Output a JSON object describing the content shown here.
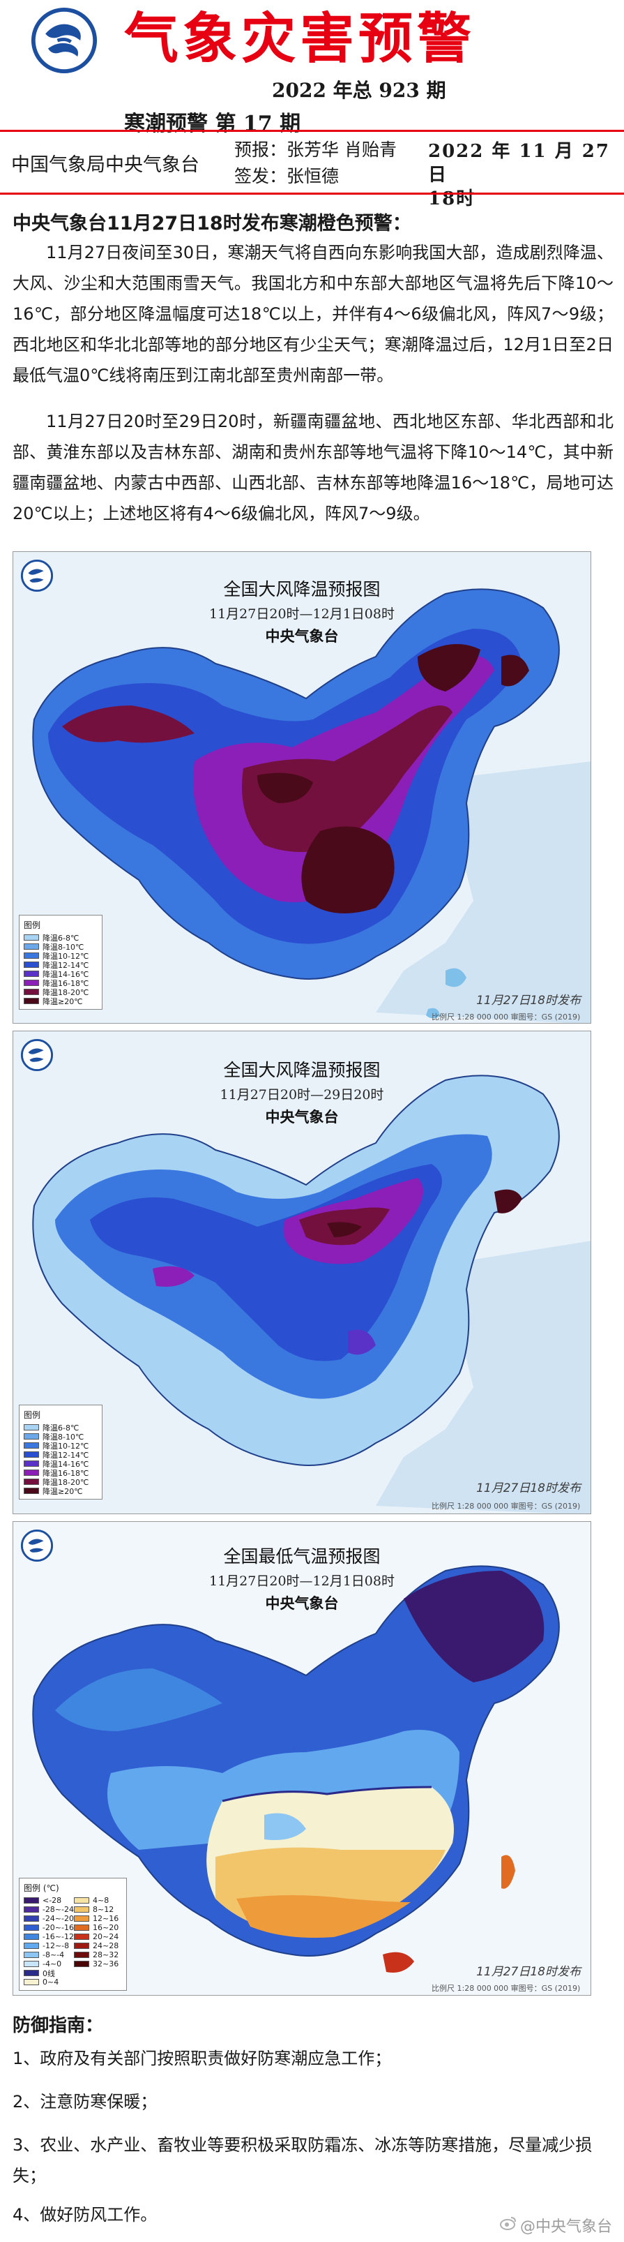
{
  "header": {
    "title": "气象灾害预警",
    "issue": "2022 年总 923 期",
    "subtitle": "寒潮预警 第 17 期",
    "org": "中国气象局中央气象台",
    "forecasters_label": "预报：",
    "forecasters": "张芳华 肖贻青",
    "issuer_label": "签发：",
    "issuer": "张恒德",
    "date_line1": "2022 年 11 月 27 日",
    "date_line2": "18时",
    "colors": {
      "title_red": "#e60012",
      "logo_blue": "#1c4fa0"
    }
  },
  "body": {
    "headline": "中央气象台11月27日18时发布寒潮橙色预警：",
    "para1": "11月27日夜间至30日，寒潮天气将自西向东影响我国大部，造成剧烈降温、大风、沙尘和大范围雨雪天气。我国北方和中东部大部地区气温将先后下降10～16℃，部分地区降温幅度可达18℃以上，并伴有4～6级偏北风，阵风7～9级；西北地区和华北北部等地的部分地区有少尘天气；寒潮降温过后，12月1日至2日最低气温0℃线将南压到江南北部至贵州南部一带。",
    "para2": "11月27日20时至29日20时，新疆南疆盆地、西北地区东部、华北西部和北部、黄淮东部以及吉林东部、湖南和贵州东部等地气温将下降10～14℃，其中新疆南疆盆地、内蒙古中西部、山西北部、吉林东部等地降温16～18℃，局地可达20℃以上；上述地区将有4～6级偏北风，阵风7～9级。"
  },
  "maps": [
    {
      "title": "全国大风降温预报图",
      "period": "11月27日20时—12月1日08时",
      "issuer": "中央气象台",
      "publish": "11月27日18时发布",
      "legend_title": "图例",
      "legend": [
        "降温6-8℃",
        "降温8-10℃",
        "降温10-12℃",
        "降温12-14℃",
        "降温14-16℃",
        "降温16-18℃",
        "降温18-20℃",
        "降温≥20℃"
      ],
      "legend_colors": [
        "#a9d3f2",
        "#6aa8ea",
        "#3a78e0",
        "#2a4fd0",
        "#5a32c8",
        "#8c1fb8",
        "#74103e",
        "#4a0a1a"
      ],
      "scale": "比例尺 1:28 000 000    审图号：GS (2019) 3082号"
    },
    {
      "title": "全国大风降温预报图",
      "period": "11月27日20时—29日20时",
      "issuer": "中央气象台",
      "publish": "11月27日18时发布",
      "legend_title": "图例",
      "legend": [
        "降温6-8℃",
        "降温8-10℃",
        "降温10-12℃",
        "降温12-14℃",
        "降温14-16℃",
        "降温16-18℃",
        "降温18-20℃",
        "降温≥20℃"
      ],
      "legend_colors": [
        "#a9d3f2",
        "#6aa8ea",
        "#3a78e0",
        "#2a4fd0",
        "#5a32c8",
        "#8c1fb8",
        "#74103e",
        "#4a0a1a"
      ],
      "scale": "比例尺 1:28 000 000    审图号：GS (2019) 3082号"
    },
    {
      "title": "全国最低气温预报图",
      "period": "11月27日20时—12月1日08时",
      "issuer": "中央气象台",
      "publish": "11月27日18时发布",
      "legend_title": "图例 (℃)",
      "legend_left": [
        "<-28",
        "-28~-24",
        "-24~-20",
        "-20~-16",
        "-16~-12",
        "-12~-8",
        "-8~-4",
        "-4~0",
        "0线",
        "0~4"
      ],
      "legend_right": [
        "4~8",
        "8~12",
        "12~16",
        "16~20",
        "20~24",
        "24~28",
        "28~32",
        "32~36"
      ],
      "legend_left_colors": [
        "#3a1a6e",
        "#4e2a9a",
        "#3340b0",
        "#2f5fd0",
        "#3f86e0",
        "#62a8ee",
        "#8ec6f3",
        "#c8e4f8",
        "#2a2a8a",
        "#f6f1d0"
      ],
      "legend_right_colors": [
        "#f7e3a4",
        "#f3c56a",
        "#ee9b3c",
        "#e26b22",
        "#c8321a",
        "#9e1a12",
        "#6e0c0c",
        "#4a0606"
      ],
      "scale": "比例尺 1:28 000 000    审图号：GS (2019) 3082号"
    }
  ],
  "guide": {
    "title": "防御指南：",
    "items": [
      "1、政府及有关部门按照职责做好防寒潮应急工作；",
      "2、注意防寒保暖；",
      "3、农业、水产业、畜牧业等要积极采取防霜冻、冰冻等防寒措施，尽量减少损失；",
      "4、做好防风工作。"
    ]
  },
  "watermark": "@中央气象台"
}
